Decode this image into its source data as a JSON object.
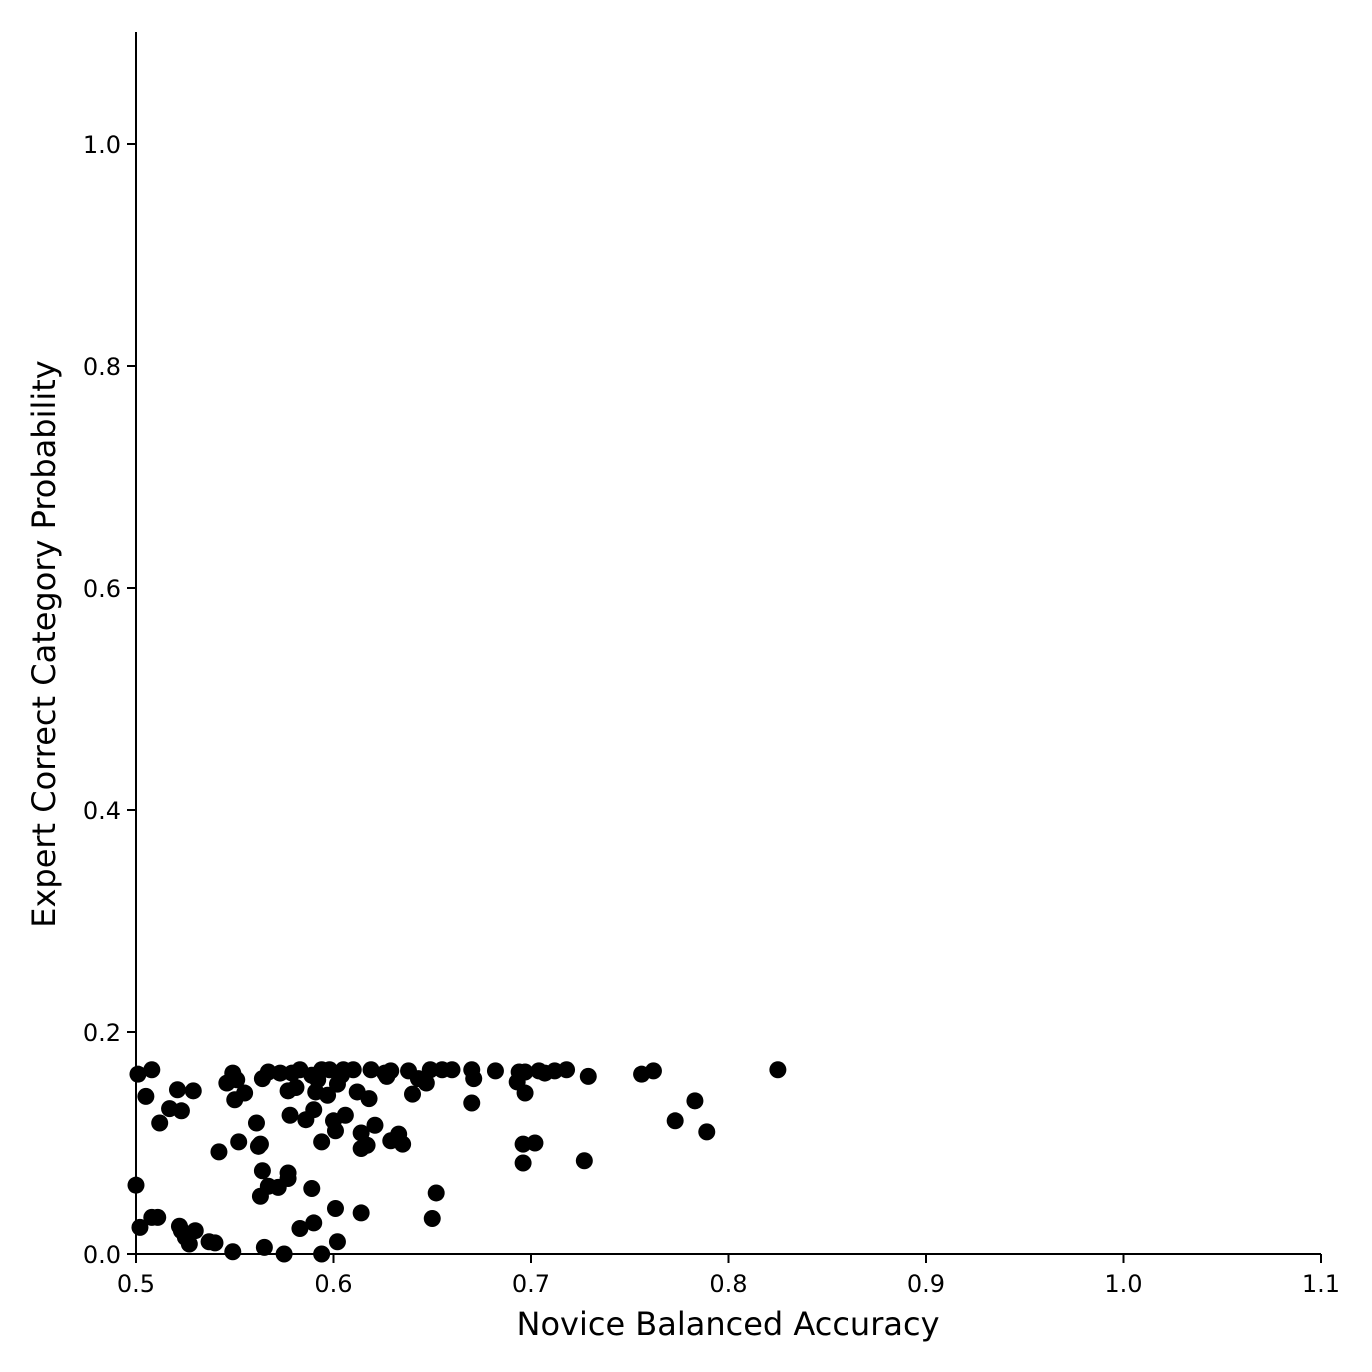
{
  "chart_data": {
    "type": "scatter",
    "title": "",
    "xlabel": "Novice Balanced Accuracy",
    "ylabel": "Expert Correct Category Probability",
    "xlim": [
      0.5,
      1.1
    ],
    "ylim": [
      0.0,
      1.1
    ],
    "xticks": [
      "0.5",
      "0.6",
      "0.7",
      "0.8",
      "0.9",
      "1.0",
      "1.1"
    ],
    "yticks": [
      "0.0",
      "0.2",
      "0.4",
      "0.6",
      "0.8",
      "1.0"
    ],
    "grid": false,
    "marker_color": "#000000",
    "points": [
      [
        0.501,
        0.162
      ],
      [
        0.508,
        0.166
      ],
      [
        0.505,
        0.142
      ],
      [
        0.512,
        0.118
      ],
      [
        0.517,
        0.131
      ],
      [
        0.521,
        0.148
      ],
      [
        0.523,
        0.129
      ],
      [
        0.529,
        0.147
      ],
      [
        0.542,
        0.092
      ],
      [
        0.546,
        0.154
      ],
      [
        0.549,
        0.163
      ],
      [
        0.551,
        0.157
      ],
      [
        0.55,
        0.139
      ],
      [
        0.552,
        0.101
      ],
      [
        0.555,
        0.145
      ],
      [
        0.561,
        0.118
      ],
      [
        0.562,
        0.097
      ],
      [
        0.563,
        0.099
      ],
      [
        0.564,
        0.158
      ],
      [
        0.567,
        0.164
      ],
      [
        0.573,
        0.163
      ],
      [
        0.577,
        0.147
      ],
      [
        0.578,
        0.125
      ],
      [
        0.579,
        0.163
      ],
      [
        0.581,
        0.15
      ],
      [
        0.583,
        0.166
      ],
      [
        0.586,
        0.121
      ],
      [
        0.589,
        0.161
      ],
      [
        0.59,
        0.13
      ],
      [
        0.591,
        0.146
      ],
      [
        0.592,
        0.157
      ],
      [
        0.594,
        0.166
      ],
      [
        0.594,
        0.101
      ],
      [
        0.597,
        0.143
      ],
      [
        0.598,
        0.166
      ],
      [
        0.6,
        0.12
      ],
      [
        0.601,
        0.111
      ],
      [
        0.602,
        0.153
      ],
      [
        0.604,
        0.161
      ],
      [
        0.605,
        0.166
      ],
      [
        0.606,
        0.125
      ],
      [
        0.61,
        0.166
      ],
      [
        0.612,
        0.146
      ],
      [
        0.614,
        0.109
      ],
      [
        0.614,
        0.095
      ],
      [
        0.617,
        0.098
      ],
      [
        0.618,
        0.14
      ],
      [
        0.619,
        0.166
      ],
      [
        0.621,
        0.116
      ],
      [
        0.626,
        0.163
      ],
      [
        0.627,
        0.16
      ],
      [
        0.629,
        0.165
      ],
      [
        0.629,
        0.102
      ],
      [
        0.633,
        0.108
      ],
      [
        0.635,
        0.099
      ],
      [
        0.638,
        0.165
      ],
      [
        0.64,
        0.144
      ],
      [
        0.643,
        0.158
      ],
      [
        0.647,
        0.154
      ],
      [
        0.649,
        0.166
      ],
      [
        0.655,
        0.166
      ],
      [
        0.66,
        0.166
      ],
      [
        0.67,
        0.166
      ],
      [
        0.671,
        0.158
      ],
      [
        0.67,
        0.136
      ],
      [
        0.682,
        0.165
      ],
      [
        0.693,
        0.155
      ],
      [
        0.694,
        0.164
      ],
      [
        0.697,
        0.164
      ],
      [
        0.697,
        0.145
      ],
      [
        0.696,
        0.099
      ],
      [
        0.696,
        0.082
      ],
      [
        0.702,
        0.1
      ],
      [
        0.704,
        0.165
      ],
      [
        0.707,
        0.163
      ],
      [
        0.712,
        0.165
      ],
      [
        0.718,
        0.166
      ],
      [
        0.729,
        0.16
      ],
      [
        0.727,
        0.084
      ],
      [
        0.756,
        0.162
      ],
      [
        0.762,
        0.165
      ],
      [
        0.773,
        0.12
      ],
      [
        0.783,
        0.138
      ],
      [
        0.789,
        0.11
      ],
      [
        0.825,
        0.166
      ],
      [
        0.5,
        0.062
      ],
      [
        0.502,
        0.024
      ],
      [
        0.508,
        0.033
      ],
      [
        0.511,
        0.033
      ],
      [
        0.522,
        0.025
      ],
      [
        0.523,
        0.021
      ],
      [
        0.525,
        0.015
      ],
      [
        0.527,
        0.009
      ],
      [
        0.53,
        0.021
      ],
      [
        0.537,
        0.011
      ],
      [
        0.54,
        0.01
      ],
      [
        0.549,
        0.002
      ],
      [
        0.563,
        0.052
      ],
      [
        0.564,
        0.075
      ],
      [
        0.567,
        0.061
      ],
      [
        0.572,
        0.06
      ],
      [
        0.577,
        0.068
      ],
      [
        0.577,
        0.073
      ],
      [
        0.565,
        0.006
      ],
      [
        0.575,
        0.0
      ],
      [
        0.583,
        0.023
      ],
      [
        0.589,
        0.059
      ],
      [
        0.59,
        0.028
      ],
      [
        0.594,
        0.0
      ],
      [
        0.601,
        0.041
      ],
      [
        0.602,
        0.011
      ],
      [
        0.614,
        0.037
      ],
      [
        0.65,
        0.032
      ],
      [
        0.652,
        0.055
      ]
    ]
  }
}
